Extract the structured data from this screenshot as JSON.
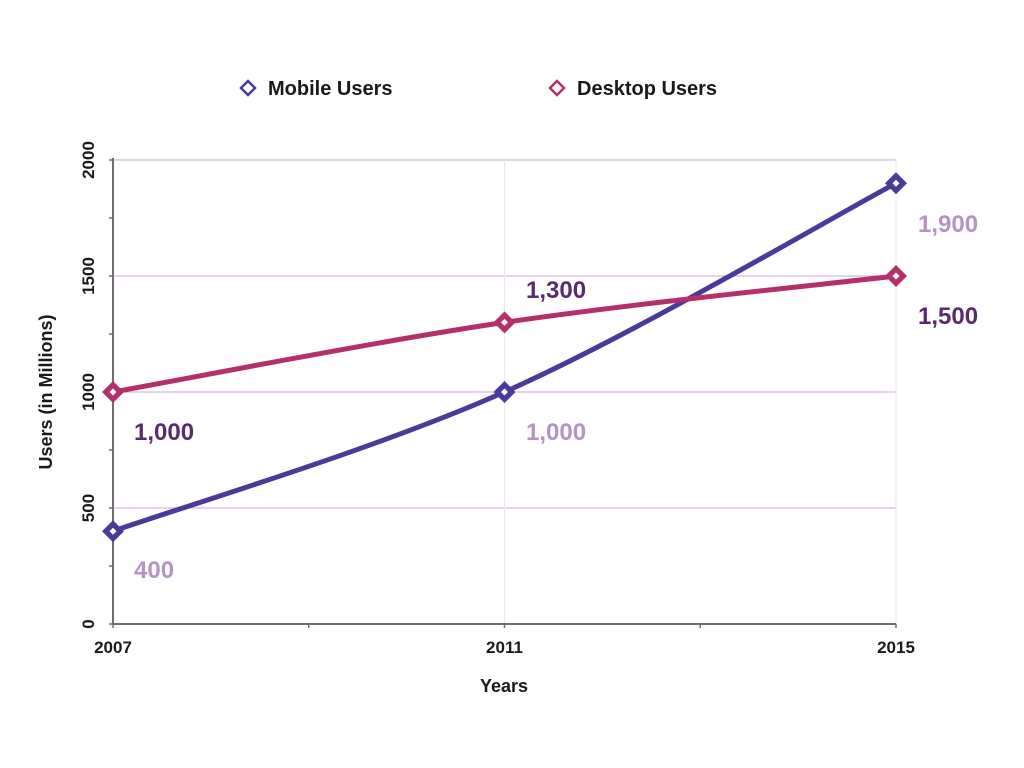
{
  "chart_data": {
    "type": "line",
    "title": "",
    "xlabel": "Years",
    "ylabel": "Users (in Millions)",
    "x": [
      "2007",
      "2011",
      "2015"
    ],
    "x_numeric": [
      2007,
      2011,
      2015
    ],
    "x_minor_ticks": [
      2009,
      2013
    ],
    "ylim": [
      0,
      2000
    ],
    "yticks": [
      0,
      500,
      1000,
      1500,
      2000
    ],
    "ytick_labels": [
      "0",
      "500",
      "1000",
      "1500",
      "2000"
    ],
    "y_minor_ticks": [
      250,
      750,
      1250,
      1750
    ],
    "grid": "horizontal and vertical, light",
    "legend": {
      "placement": "top-center",
      "marker": "hollow-diamond"
    },
    "series": [
      {
        "name": "Mobile Users",
        "color": "#4b3a9a",
        "values": [
          400,
          1000,
          1900
        ],
        "data_labels": [
          "400",
          "1,000",
          "1,900"
        ],
        "label_color": "#b493c6"
      },
      {
        "name": "Desktop Users",
        "color": "#b5306b",
        "values": [
          1000,
          1300,
          1500
        ],
        "data_labels": [
          "1,000",
          "1,300",
          "1,500"
        ],
        "label_color": "#5a2a6e"
      }
    ],
    "colors": {
      "gridline": "#d9b8df",
      "vgridline": "#eee4f0",
      "axis": "#6e6e6e",
      "marker_fill": "#ffffff"
    }
  }
}
